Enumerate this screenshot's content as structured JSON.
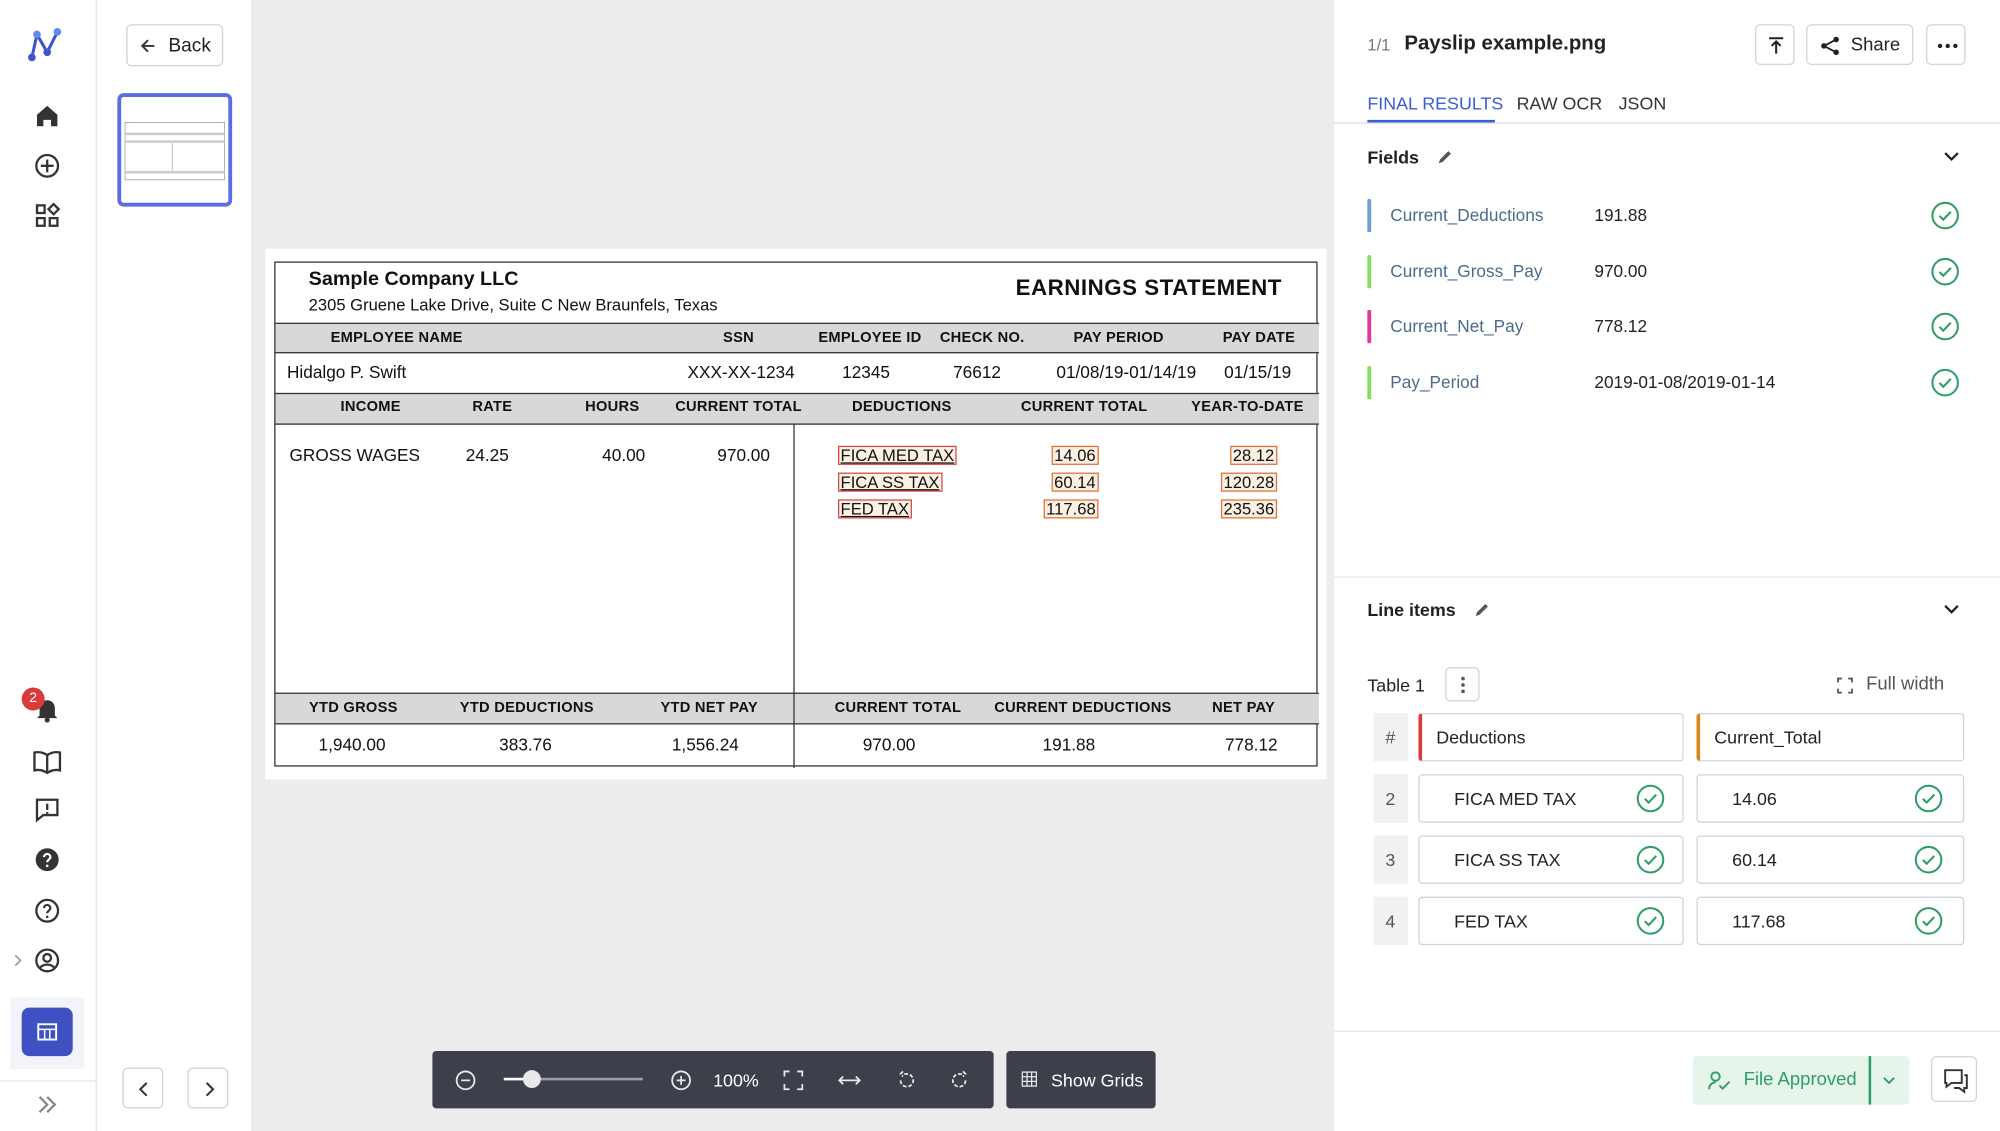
{
  "nav": {
    "notification_count": "2"
  },
  "viewer": {
    "back": "Back",
    "zoom": "100%",
    "show_grids": "Show Grids"
  },
  "document": {
    "company": "Sample Company LLC",
    "address": "2305 Gruene Lake Drive, Suite C New Braunfels, Texas",
    "title": "EARNINGS STATEMENT",
    "employee_headers": [
      "EMPLOYEE NAME",
      "SSN",
      "EMPLOYEE ID",
      "CHECK NO.",
      "PAY PERIOD",
      "PAY DATE"
    ],
    "employee_values": [
      "Hidalgo P. Swift",
      "XXX-XX-1234",
      "12345",
      "76612",
      "01/08/19-01/14/19",
      "01/15/19"
    ],
    "detail_headers": [
      "INCOME",
      "RATE",
      "HOURS",
      "CURRENT TOTAL",
      "DEDUCTIONS",
      "CURRENT TOTAL",
      "YEAR-TO-DATE"
    ],
    "income": [
      "GROSS WAGES",
      "24.25",
      "40.00",
      "970.00"
    ],
    "deductions": [
      [
        "FICA MED TAX",
        "14.06",
        "28.12"
      ],
      [
        "FICA SS TAX",
        "60.14",
        "120.28"
      ],
      [
        "FED TAX",
        "117.68",
        "235.36"
      ]
    ],
    "summary_headers": [
      "YTD GROSS",
      "YTD DEDUCTIONS",
      "YTD NET PAY",
      "CURRENT TOTAL",
      "CURRENT DEDUCTIONS",
      "NET PAY"
    ],
    "summary_values": [
      "1,940.00",
      "383.76",
      "1,556.24",
      "970.00",
      "191.88",
      "778.12"
    ]
  },
  "panel": {
    "page": "1/1",
    "filename": "Payslip example.png",
    "share": "Share",
    "tabs": [
      "FINAL RESULTS",
      "RAW OCR",
      "JSON"
    ],
    "fields_title": "Fields",
    "fields": [
      {
        "name": "Current_Deductions",
        "value": "191.88",
        "color": "#6b9fd9"
      },
      {
        "name": "Current_Gross_Pay",
        "value": "970.00",
        "color": "#86dd5a"
      },
      {
        "name": "Current_Net_Pay",
        "value": "778.12",
        "color": "#e0399b"
      },
      {
        "name": "Pay_Period",
        "value": "2019-01-08/2019-01-14",
        "color": "#86dd5a"
      }
    ],
    "line_items_title": "Line items",
    "table_name": "Table 1",
    "full_width": "Full width",
    "columns": [
      "#",
      "Deductions",
      "Current_Total"
    ],
    "rows": [
      [
        "2",
        "FICA MED TAX",
        "14.06"
      ],
      [
        "3",
        "FICA SS TAX",
        "60.14"
      ],
      [
        "4",
        "FED TAX",
        "117.68"
      ]
    ],
    "approve": "File Approved"
  }
}
